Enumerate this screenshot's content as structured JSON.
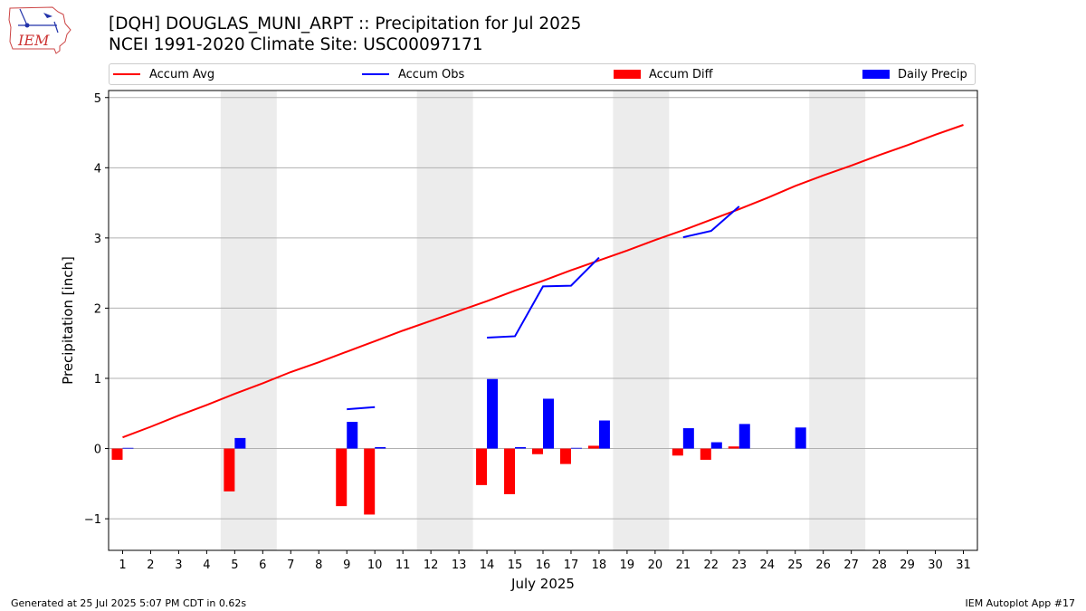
{
  "header": {
    "logo_text": "IEM",
    "title_line1": "[DQH] DOUGLAS_MUNI_ARPT :: Precipitation for Jul 2025",
    "title_line2": "NCEI 1991-2020 Climate Site: USC00097171"
  },
  "legend": [
    {
      "label": "Accum Avg",
      "kind": "line",
      "color": "#ff0000"
    },
    {
      "label": "Accum Obs",
      "kind": "line",
      "color": "#0000ff"
    },
    {
      "label": "Accum Diff",
      "kind": "bar",
      "color": "#ff0000"
    },
    {
      "label": "Daily Precip",
      "kind": "bar",
      "color": "#0000ff"
    }
  ],
  "footer": {
    "generated": "Generated at 25 Jul 2025 5:07 PM CDT in 0.62s",
    "app": "IEM Autoplot App #17"
  },
  "chart_data": {
    "type": "bar",
    "xlabel": "July 2025",
    "ylabel": "Precipitation [inch]",
    "x": [
      1,
      2,
      3,
      4,
      5,
      6,
      7,
      8,
      9,
      10,
      11,
      12,
      13,
      14,
      15,
      16,
      17,
      18,
      19,
      20,
      21,
      22,
      23,
      24,
      25,
      26,
      27,
      28,
      29,
      30,
      31
    ],
    "xlim": [
      0.5,
      31.5
    ],
    "ylim": [
      -1.45,
      5.1
    ],
    "yticks": [
      -1,
      0,
      1,
      2,
      3,
      4,
      5
    ],
    "ytick_labels": [
      "−1",
      "0",
      "1",
      "2",
      "3",
      "4",
      "5"
    ],
    "grid": "y",
    "weekend_shading": [
      [
        4.5,
        6.5
      ],
      [
        11.5,
        13.5
      ],
      [
        18.5,
        20.5
      ],
      [
        25.5,
        27.5
      ]
    ],
    "accum_avg": {
      "name": "Accum Avg",
      "color": "#ff0000",
      "values": [
        0.16,
        0.31,
        0.47,
        0.62,
        0.78,
        0.93,
        1.09,
        1.23,
        1.38,
        1.53,
        1.68,
        1.82,
        1.96,
        2.1,
        2.25,
        2.39,
        2.54,
        2.68,
        2.82,
        2.97,
        3.11,
        3.26,
        3.41,
        3.57,
        3.74,
        3.89,
        4.03,
        4.18,
        4.32,
        4.47,
        4.61
      ]
    },
    "accum_obs": {
      "name": "Accum Obs",
      "color": "#0000ff",
      "segments": [
        {
          "x": [
            9,
            10
          ],
          "y": [
            0.56,
            0.59
          ]
        },
        {
          "x": [
            14,
            15,
            16,
            17,
            18
          ],
          "y": [
            1.58,
            1.6,
            2.31,
            2.32,
            2.72
          ]
        },
        {
          "x": [
            21,
            22,
            23
          ],
          "y": [
            3.01,
            3.1,
            3.45
          ]
        }
      ]
    },
    "accum_diff": {
      "name": "Accum Diff",
      "color": "#ff0000",
      "x": [
        1,
        5,
        9,
        10,
        14,
        15,
        16,
        17,
        18,
        21,
        22,
        23
      ],
      "values": [
        -0.16,
        -0.61,
        -0.82,
        -0.94,
        -0.52,
        -0.65,
        -0.08,
        -0.22,
        0.04,
        -0.1,
        -0.16,
        0.03
      ]
    },
    "daily_precip": {
      "name": "Daily Precip",
      "color": "#0000ff",
      "x": [
        1,
        5,
        9,
        10,
        14,
        15,
        16,
        17,
        18,
        21,
        22,
        23,
        25
      ],
      "values": [
        0.01,
        0.15,
        0.38,
        0.02,
        0.99,
        0.02,
        0.71,
        0.01,
        0.4,
        0.29,
        0.09,
        0.35,
        0.3
      ]
    }
  }
}
